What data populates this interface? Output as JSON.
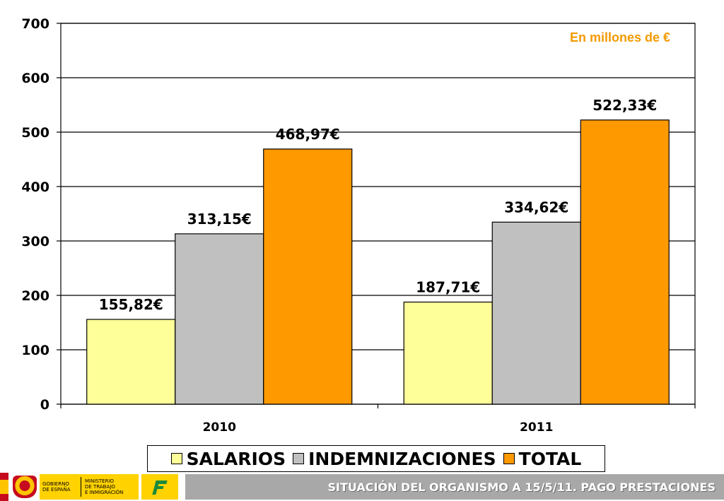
{
  "chart_data": {
    "type": "bar",
    "categories": [
      "2010",
      "2011"
    ],
    "series": [
      {
        "name": "SALARIOS",
        "values": [
          155.82,
          187.71
        ],
        "labels": [
          "155,82€",
          "187,71€"
        ],
        "color": "#ffff99"
      },
      {
        "name": "INDEMNIZACIONES",
        "values": [
          313.15,
          334.62
        ],
        "labels": [
          "313,15€",
          "334,62€"
        ],
        "color": "#c0c0c0"
      },
      {
        "name": "TOTAL",
        "values": [
          468.97,
          522.33
        ],
        "labels": [
          "468,97€",
          "522,33€"
        ],
        "color": "#ff9900"
      }
    ],
    "ylim": [
      0,
      700
    ],
    "yticks": [
      0,
      100,
      200,
      300,
      400,
      500,
      600,
      700
    ],
    "grid": true,
    "legend": "bottom",
    "annotation": "En millones de €",
    "annotation_color": "#f39a00"
  },
  "footer": {
    "gov_line1": "GOBIERNO",
    "gov_line2": "DE ESPAÑA",
    "ministry_line1": "MINISTERIO",
    "ministry_line2": "DE TRABAJO",
    "ministry_line3": "E INMIGRACIÓN",
    "title": "SITUACIÓN DEL ORGANISMO A 15/5/11. PAGO PRESTACIONES"
  }
}
